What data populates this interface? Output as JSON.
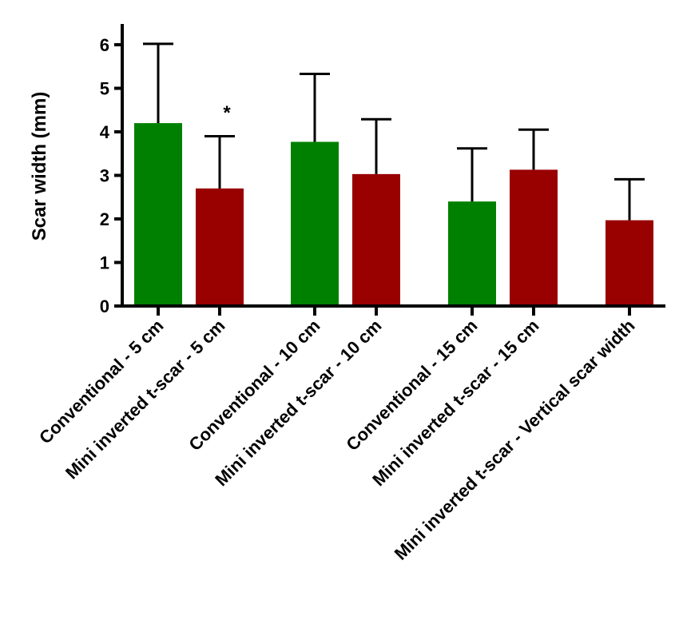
{
  "chart_data": {
    "type": "bar",
    "ylabel": "Scar width (mm)",
    "ylim": [
      0,
      6.5
    ],
    "yticks": [
      0,
      1,
      2,
      3,
      4,
      5,
      6
    ],
    "grid": false,
    "legend": "none",
    "categories": [
      "Conventional - 5 cm",
      "Mini inverted t-scar  - 5 cm",
      "Conventional - 10 cm",
      "Mini inverted t-scar - 10 cm",
      "Conventional - 15 cm",
      "Mini inverted t-scar - 15 cm",
      "Mini inverted t-scar - Vertical scar width"
    ],
    "values": [
      4.2,
      2.7,
      3.77,
      3.03,
      2.4,
      3.13,
      1.97
    ],
    "error_upper": [
      6.02,
      3.9,
      5.33,
      4.29,
      3.62,
      4.05,
      2.91
    ],
    "colors": [
      "#008000",
      "#990000",
      "#008000",
      "#990000",
      "#008000",
      "#990000",
      "#990000"
    ],
    "annotations": [
      {
        "text": "*",
        "category_index": 1,
        "value": 4.55
      }
    ]
  }
}
